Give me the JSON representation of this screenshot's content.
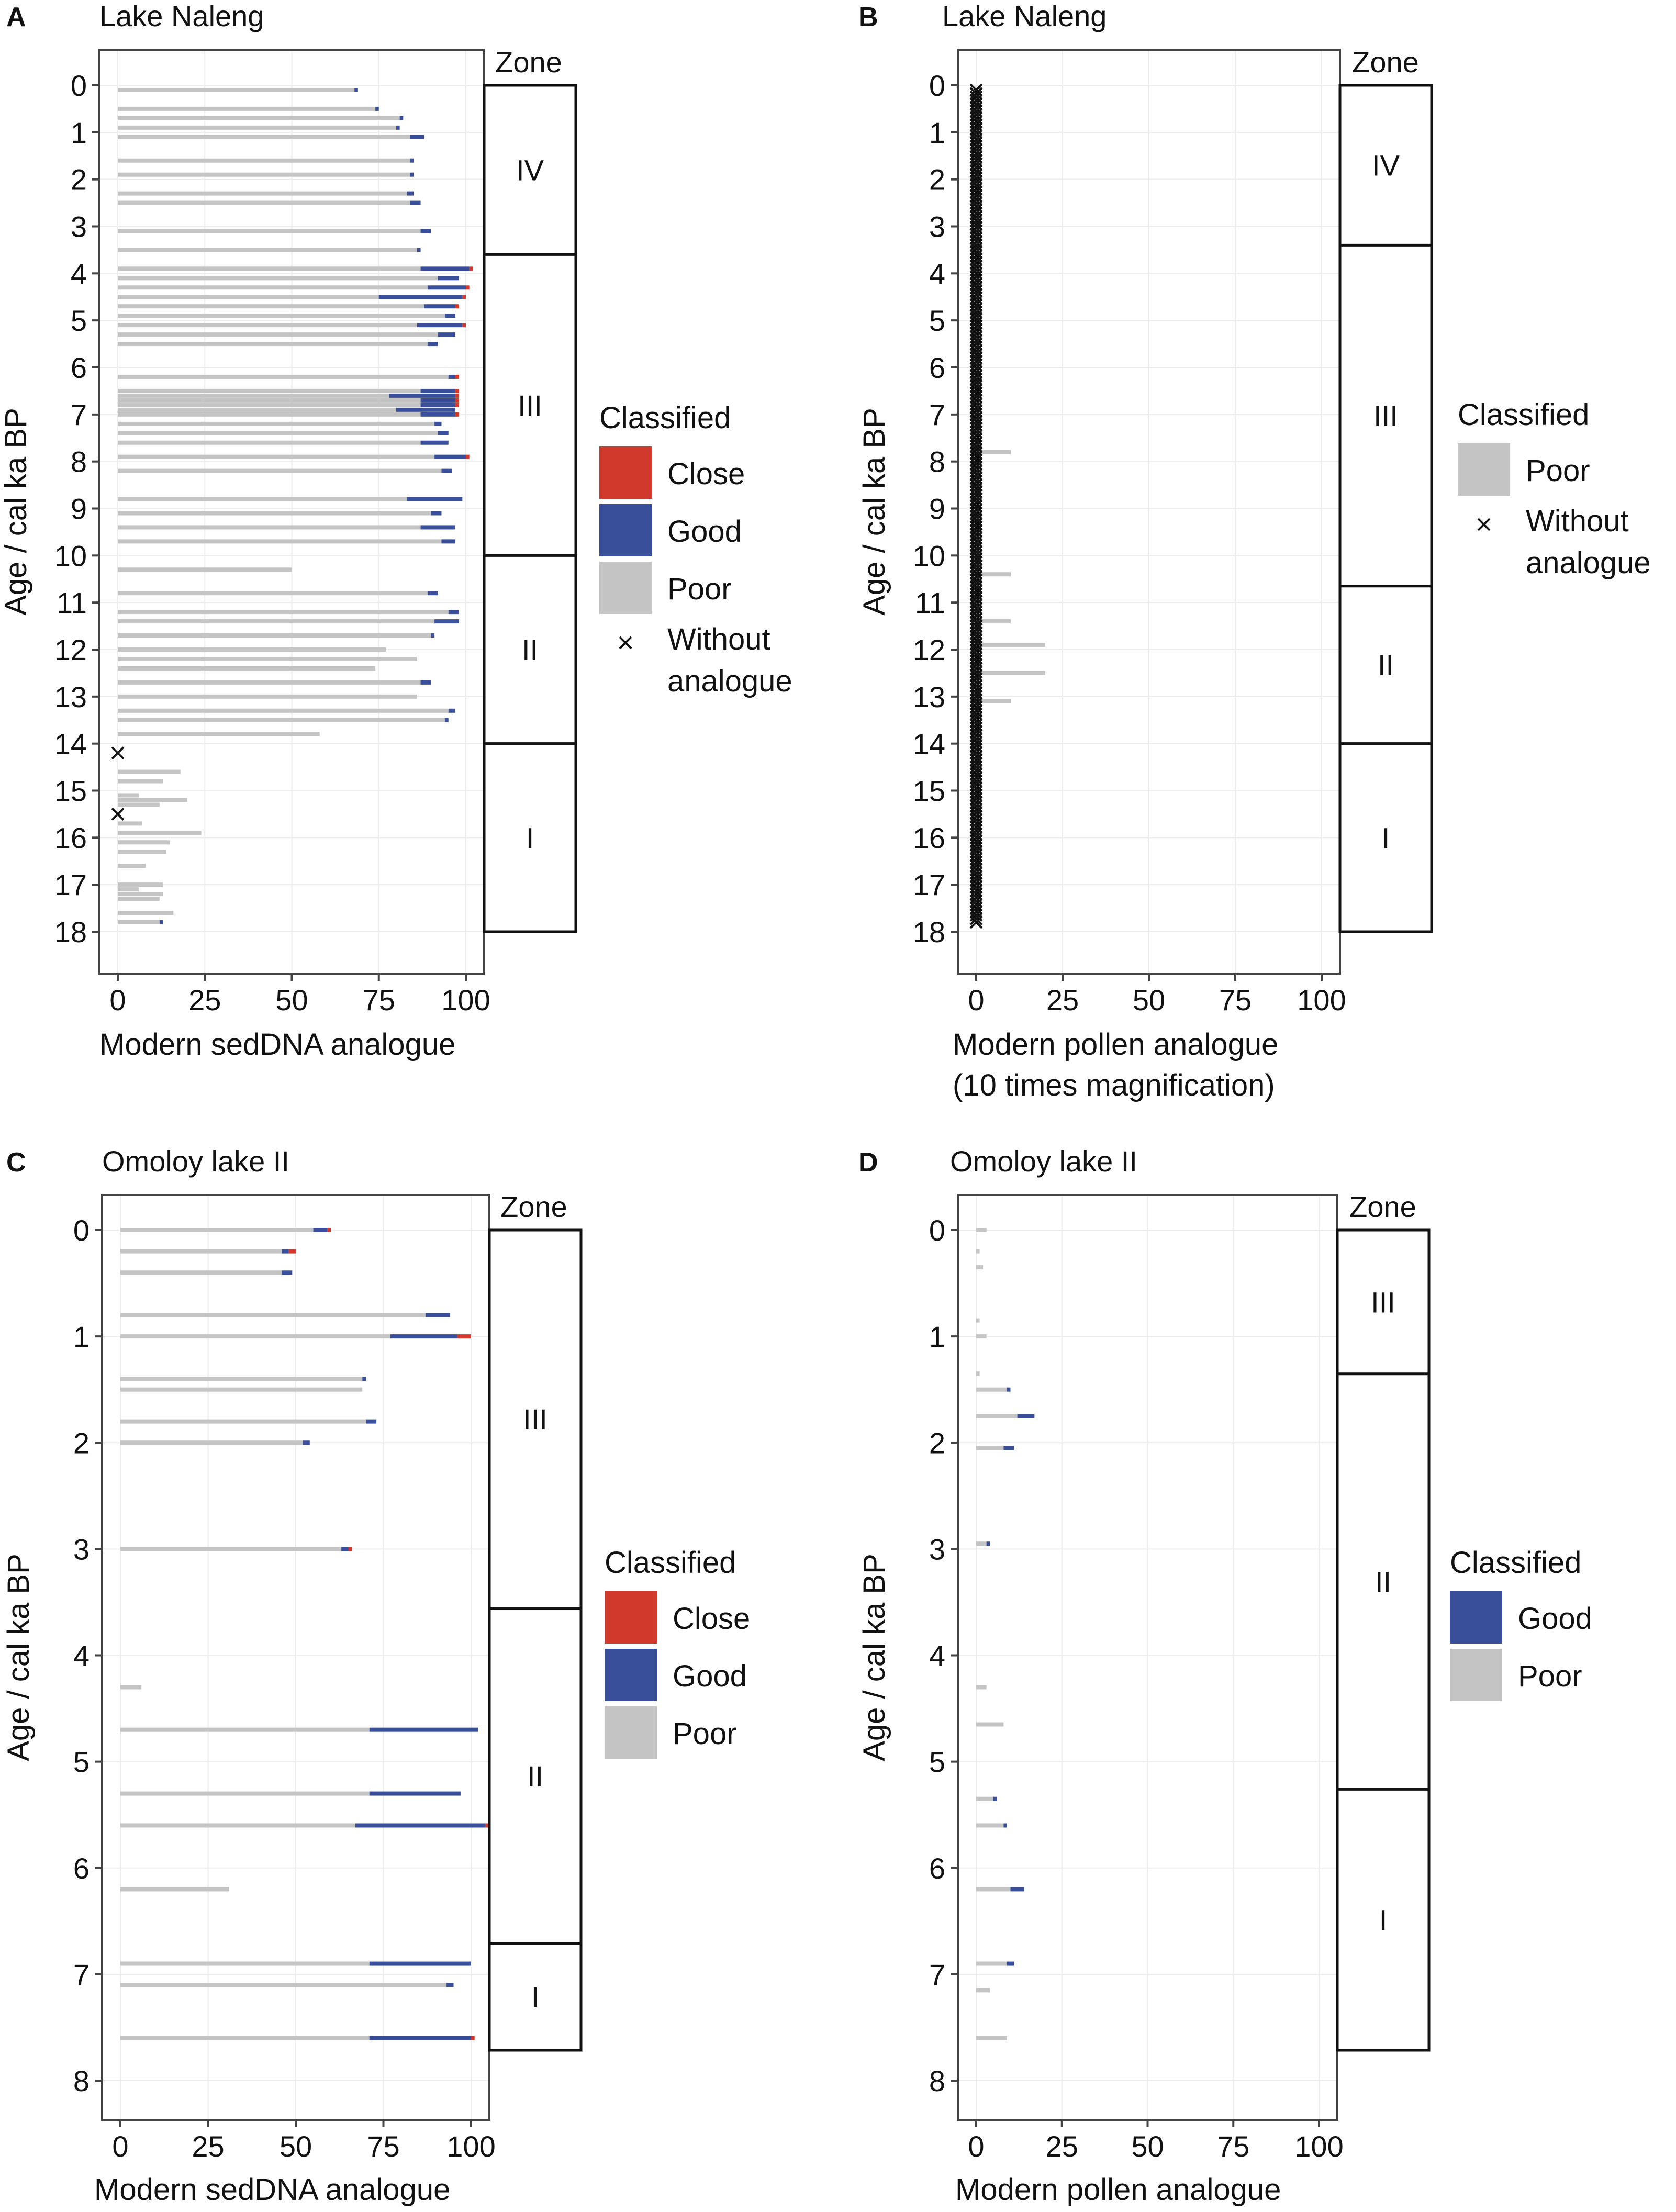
{
  "figure": {
    "description": "Four-panel modern analogue comparison"
  },
  "colors": {
    "close": "#d0392b",
    "good": "#3a4f9a",
    "poor": "#c4c4c4",
    "axis": "#444444",
    "grid": "#ececec",
    "zone_border": "#111111"
  },
  "chart_data": [
    {
      "panel_letter": "A",
      "type": "bar",
      "orientation": "horizontal-stacked",
      "title": "Lake Naleng",
      "xlabel": "Modern sedDNA analogue",
      "ylabel": "Age / cal ka BP",
      "xlim": [
        0,
        100
      ],
      "ylim": [
        0,
        18
      ],
      "xticks": [
        "0",
        "25",
        "50",
        "75",
        "100"
      ],
      "yticks": [
        "0",
        "1",
        "2",
        "3",
        "4",
        "5",
        "6",
        "7",
        "8",
        "9",
        "10",
        "11",
        "12",
        "13",
        "14",
        "15",
        "16",
        "17",
        "18"
      ],
      "zones": {
        "header": "Zone",
        "items": [
          {
            "label": "IV",
            "from": 0,
            "to": 3.6
          },
          {
            "label": "III",
            "from": 3.6,
            "to": 10.0
          },
          {
            "label": "II",
            "from": 10.0,
            "to": 14.0
          },
          {
            "label": "I",
            "from": 14.0,
            "to": 18.0
          }
        ]
      },
      "legend": {
        "title": "Classified",
        "items": [
          {
            "key": "close",
            "label": "Close"
          },
          {
            "key": "good",
            "label": "Good"
          },
          {
            "key": "poor",
            "label": "Poor"
          },
          {
            "key": "without",
            "label": "Without analogue"
          }
        ]
      },
      "samples": [
        {
          "age": 0.1,
          "poor": 68,
          "good": 1,
          "close": 0
        },
        {
          "age": 0.5,
          "poor": 74,
          "good": 1,
          "close": 0
        },
        {
          "age": 0.7,
          "poor": 81,
          "good": 1,
          "close": 0
        },
        {
          "age": 0.9,
          "poor": 80,
          "good": 1,
          "close": 0
        },
        {
          "age": 1.1,
          "poor": 84,
          "good": 4,
          "close": 0
        },
        {
          "age": 1.6,
          "poor": 84,
          "good": 1,
          "close": 0
        },
        {
          "age": 1.9,
          "poor": 84,
          "good": 1,
          "close": 0
        },
        {
          "age": 2.3,
          "poor": 83,
          "good": 2,
          "close": 0
        },
        {
          "age": 2.5,
          "poor": 84,
          "good": 3,
          "close": 0
        },
        {
          "age": 3.1,
          "poor": 87,
          "good": 3,
          "close": 0
        },
        {
          "age": 3.5,
          "poor": 86,
          "good": 1,
          "close": 0
        },
        {
          "age": 3.9,
          "poor": 87,
          "good": 14,
          "close": 1
        },
        {
          "age": 4.1,
          "poor": 92,
          "good": 6,
          "close": 0
        },
        {
          "age": 4.3,
          "poor": 89,
          "good": 11,
          "close": 1
        },
        {
          "age": 4.5,
          "poor": 75,
          "good": 24,
          "close": 1
        },
        {
          "age": 4.7,
          "poor": 88,
          "good": 9,
          "close": 1
        },
        {
          "age": 4.9,
          "poor": 94,
          "good": 3,
          "close": 0
        },
        {
          "age": 5.1,
          "poor": 86,
          "good": 13,
          "close": 1
        },
        {
          "age": 5.3,
          "poor": 92,
          "good": 5,
          "close": 0
        },
        {
          "age": 5.5,
          "poor": 89,
          "good": 3,
          "close": 0
        },
        {
          "age": 6.2,
          "poor": 95,
          "good": 2,
          "close": 1
        },
        {
          "age": 6.5,
          "poor": 87,
          "good": 10,
          "close": 1
        },
        {
          "age": 6.6,
          "poor": 78,
          "good": 19,
          "close": 1
        },
        {
          "age": 6.7,
          "poor": 87,
          "good": 10,
          "close": 1
        },
        {
          "age": 6.8,
          "poor": 87,
          "good": 10,
          "close": 1
        },
        {
          "age": 6.9,
          "poor": 80,
          "good": 17,
          "close": 0
        },
        {
          "age": 7.0,
          "poor": 87,
          "good": 10,
          "close": 1
        },
        {
          "age": 7.2,
          "poor": 91,
          "good": 2,
          "close": 0
        },
        {
          "age": 7.4,
          "poor": 92,
          "good": 3,
          "close": 0
        },
        {
          "age": 7.6,
          "poor": 87,
          "good": 8,
          "close": 0
        },
        {
          "age": 7.9,
          "poor": 91,
          "good": 9,
          "close": 1
        },
        {
          "age": 8.2,
          "poor": 93,
          "good": 3,
          "close": 0
        },
        {
          "age": 8.8,
          "poor": 83,
          "good": 16,
          "close": 0
        },
        {
          "age": 9.1,
          "poor": 90,
          "good": 3,
          "close": 0
        },
        {
          "age": 9.4,
          "poor": 87,
          "good": 10,
          "close": 0
        },
        {
          "age": 9.7,
          "poor": 93,
          "good": 4,
          "close": 0
        },
        {
          "age": 10.3,
          "poor": 50,
          "good": 0,
          "close": 0
        },
        {
          "age": 10.8,
          "poor": 89,
          "good": 3,
          "close": 0
        },
        {
          "age": 11.2,
          "poor": 95,
          "good": 3,
          "close": 0
        },
        {
          "age": 11.4,
          "poor": 91,
          "good": 7,
          "close": 0
        },
        {
          "age": 11.7,
          "poor": 90,
          "good": 1,
          "close": 0
        },
        {
          "age": 12.0,
          "poor": 77,
          "good": 0,
          "close": 0
        },
        {
          "age": 12.2,
          "poor": 86,
          "good": 0,
          "close": 0
        },
        {
          "age": 12.4,
          "poor": 74,
          "good": 0,
          "close": 0
        },
        {
          "age": 12.7,
          "poor": 87,
          "good": 3,
          "close": 0
        },
        {
          "age": 13.0,
          "poor": 86,
          "good": 0,
          "close": 0
        },
        {
          "age": 13.3,
          "poor": 95,
          "good": 2,
          "close": 0
        },
        {
          "age": 13.5,
          "poor": 94,
          "good": 1,
          "close": 0
        },
        {
          "age": 13.8,
          "poor": 58,
          "good": 0,
          "close": 0
        },
        {
          "age": 14.6,
          "poor": 18,
          "good": 0,
          "close": 0
        },
        {
          "age": 14.8,
          "poor": 13,
          "good": 0,
          "close": 0
        },
        {
          "age": 15.1,
          "poor": 6,
          "good": 0,
          "close": 0
        },
        {
          "age": 15.2,
          "poor": 20,
          "good": 0,
          "close": 0
        },
        {
          "age": 15.3,
          "poor": 12,
          "good": 0,
          "close": 0
        },
        {
          "age": 15.7,
          "poor": 7,
          "good": 0,
          "close": 0
        },
        {
          "age": 15.9,
          "poor": 24,
          "good": 0,
          "close": 0
        },
        {
          "age": 16.1,
          "poor": 15,
          "good": 0,
          "close": 0
        },
        {
          "age": 16.3,
          "poor": 14,
          "good": 0,
          "close": 0
        },
        {
          "age": 16.6,
          "poor": 8,
          "good": 0,
          "close": 0
        },
        {
          "age": 17.0,
          "poor": 13,
          "good": 0,
          "close": 0
        },
        {
          "age": 17.1,
          "poor": 6,
          "good": 0,
          "close": 0
        },
        {
          "age": 17.2,
          "poor": 13,
          "good": 0,
          "close": 0
        },
        {
          "age": 17.3,
          "poor": 12,
          "good": 0,
          "close": 0
        },
        {
          "age": 17.6,
          "poor": 16,
          "good": 0,
          "close": 0
        },
        {
          "age": 17.8,
          "poor": 12,
          "good": 1,
          "close": 0
        }
      ],
      "without_analogue": [
        14.2,
        15.5
      ]
    },
    {
      "panel_letter": "B",
      "type": "bar",
      "orientation": "horizontal-stacked",
      "title": "Lake Naleng",
      "xlabel": "Modern pollen analogue",
      "xlabel2": "(10 times magnification)",
      "ylabel": "Age / cal ka BP",
      "xlim": [
        0,
        100
      ],
      "ylim": [
        0,
        18
      ],
      "xticks": [
        "0",
        "25",
        "50",
        "75",
        "100"
      ],
      "yticks": [
        "0",
        "1",
        "2",
        "3",
        "4",
        "5",
        "6",
        "7",
        "8",
        "9",
        "10",
        "11",
        "12",
        "13",
        "14",
        "15",
        "16",
        "17",
        "18"
      ],
      "zones": {
        "header": "Zone",
        "items": [
          {
            "label": "IV",
            "from": 0,
            "to": 3.4
          },
          {
            "label": "III",
            "from": 3.4,
            "to": 10.65
          },
          {
            "label": "II",
            "from": 10.65,
            "to": 14.0
          },
          {
            "label": "I",
            "from": 14.0,
            "to": 18.0
          }
        ]
      },
      "legend": {
        "title": "Classified",
        "items": [
          {
            "key": "poor",
            "label": "Poor"
          },
          {
            "key": "without",
            "label": "Without analogue"
          }
        ]
      },
      "samples": [
        {
          "age": 7.8,
          "poor": 10,
          "good": 0,
          "close": 0
        },
        {
          "age": 10.4,
          "poor": 10,
          "good": 0,
          "close": 0
        },
        {
          "age": 11.4,
          "poor": 10,
          "good": 0,
          "close": 0
        },
        {
          "age": 11.9,
          "poor": 20,
          "good": 0,
          "close": 0
        },
        {
          "age": 12.5,
          "poor": 20,
          "good": 0,
          "close": 0
        },
        {
          "age": 13.1,
          "poor": 10,
          "good": 0,
          "close": 0
        }
      ],
      "without_analogue_range": [
        0.1,
        17.8,
        0.075
      ]
    },
    {
      "panel_letter": "C",
      "type": "bar",
      "orientation": "horizontal-stacked",
      "title": "Omoloy lake II",
      "xlabel": "Modern sedDNA analogue",
      "ylabel": "Age / cal ka BP",
      "xlim": [
        0,
        100
      ],
      "ylim": [
        0,
        8
      ],
      "xticks": [
        "0",
        "25",
        "50",
        "75",
        "100"
      ],
      "yticks": [
        "0",
        "1",
        "2",
        "3",
        "4",
        "5",
        "6",
        "7",
        "8"
      ],
      "zones": {
        "header": "Zone",
        "items": [
          {
            "label": "III",
            "from": 0,
            "to": 3.55
          },
          {
            "label": "II",
            "from": 3.55,
            "to": 6.7
          },
          {
            "label": "I",
            "from": 6.7,
            "to": 7.7
          }
        ]
      },
      "legend": {
        "title": "Classified",
        "items": [
          {
            "key": "close",
            "label": "Close"
          },
          {
            "key": "good",
            "label": "Good"
          },
          {
            "key": "poor",
            "label": "Poor"
          }
        ]
      },
      "samples": [
        {
          "age": 0.0,
          "poor": 55,
          "good": 4,
          "close": 1
        },
        {
          "age": 0.2,
          "poor": 46,
          "good": 2,
          "close": 2
        },
        {
          "age": 0.4,
          "poor": 46,
          "good": 3,
          "close": 0
        },
        {
          "age": 0.8,
          "poor": 87,
          "good": 7,
          "close": 0
        },
        {
          "age": 1.0,
          "poor": 77,
          "good": 19,
          "close": 4
        },
        {
          "age": 1.4,
          "poor": 69,
          "good": 1,
          "close": 0
        },
        {
          "age": 1.5,
          "poor": 69,
          "good": 0,
          "close": 0
        },
        {
          "age": 1.8,
          "poor": 70,
          "good": 3,
          "close": 0
        },
        {
          "age": 2.0,
          "poor": 52,
          "good": 2,
          "close": 0
        },
        {
          "age": 3.0,
          "poor": 63,
          "good": 2,
          "close": 1
        },
        {
          "age": 4.3,
          "poor": 6,
          "good": 0,
          "close": 0
        },
        {
          "age": 4.7,
          "poor": 71,
          "good": 31,
          "close": 0
        },
        {
          "age": 5.3,
          "poor": 71,
          "good": 26,
          "close": 0
        },
        {
          "age": 5.6,
          "poor": 67,
          "good": 37,
          "close": 2
        },
        {
          "age": 6.2,
          "poor": 31,
          "good": 0,
          "close": 0
        },
        {
          "age": 6.9,
          "poor": 71,
          "good": 29,
          "close": 0
        },
        {
          "age": 7.1,
          "poor": 93,
          "good": 2,
          "close": 0
        },
        {
          "age": 7.6,
          "poor": 71,
          "good": 29,
          "close": 1
        }
      ]
    },
    {
      "panel_letter": "D",
      "type": "bar",
      "orientation": "horizontal-stacked",
      "title": "Omoloy lake II",
      "xlabel": "Modern  pollen analogue",
      "ylabel": "Age / cal ka BP",
      "xlim": [
        0,
        100
      ],
      "ylim": [
        0,
        8
      ],
      "xticks": [
        "0",
        "25",
        "50",
        "75",
        "100"
      ],
      "yticks": [
        "0",
        "1",
        "2",
        "3",
        "4",
        "5",
        "6",
        "7",
        "8"
      ],
      "zones": {
        "header": "Zone",
        "items": [
          {
            "label": "III",
            "from": 0,
            "to": 1.35
          },
          {
            "label": "II",
            "from": 1.35,
            "to": 5.25
          },
          {
            "label": "I",
            "from": 5.25,
            "to": 7.7
          }
        ]
      },
      "legend": {
        "title": "Classified",
        "items": [
          {
            "key": "good",
            "label": "Good"
          },
          {
            "key": "poor",
            "label": "Poor"
          }
        ]
      },
      "samples": [
        {
          "age": 0.0,
          "poor": 3,
          "good": 0,
          "close": 0
        },
        {
          "age": 0.2,
          "poor": 1,
          "good": 0,
          "close": 0
        },
        {
          "age": 0.35,
          "poor": 2,
          "good": 0,
          "close": 0
        },
        {
          "age": 0.85,
          "poor": 1,
          "good": 0,
          "close": 0
        },
        {
          "age": 1.0,
          "poor": 3,
          "good": 0,
          "close": 0
        },
        {
          "age": 1.35,
          "poor": 1,
          "good": 0,
          "close": 0
        },
        {
          "age": 1.5,
          "poor": 9,
          "good": 1,
          "close": 0
        },
        {
          "age": 1.75,
          "poor": 12,
          "good": 5,
          "close": 0
        },
        {
          "age": 2.05,
          "poor": 8,
          "good": 3,
          "close": 0
        },
        {
          "age": 2.95,
          "poor": 3,
          "good": 1,
          "close": 0
        },
        {
          "age": 4.3,
          "poor": 3,
          "good": 0,
          "close": 0
        },
        {
          "age": 4.65,
          "poor": 8,
          "good": 0,
          "close": 0
        },
        {
          "age": 5.35,
          "poor": 5,
          "good": 1,
          "close": 0
        },
        {
          "age": 5.6,
          "poor": 8,
          "good": 1,
          "close": 0
        },
        {
          "age": 6.2,
          "poor": 10,
          "good": 4,
          "close": 0
        },
        {
          "age": 6.9,
          "poor": 9,
          "good": 2,
          "close": 0
        },
        {
          "age": 7.15,
          "poor": 4,
          "good": 0,
          "close": 0
        },
        {
          "age": 7.6,
          "poor": 9,
          "good": 0,
          "close": 0
        }
      ]
    }
  ]
}
